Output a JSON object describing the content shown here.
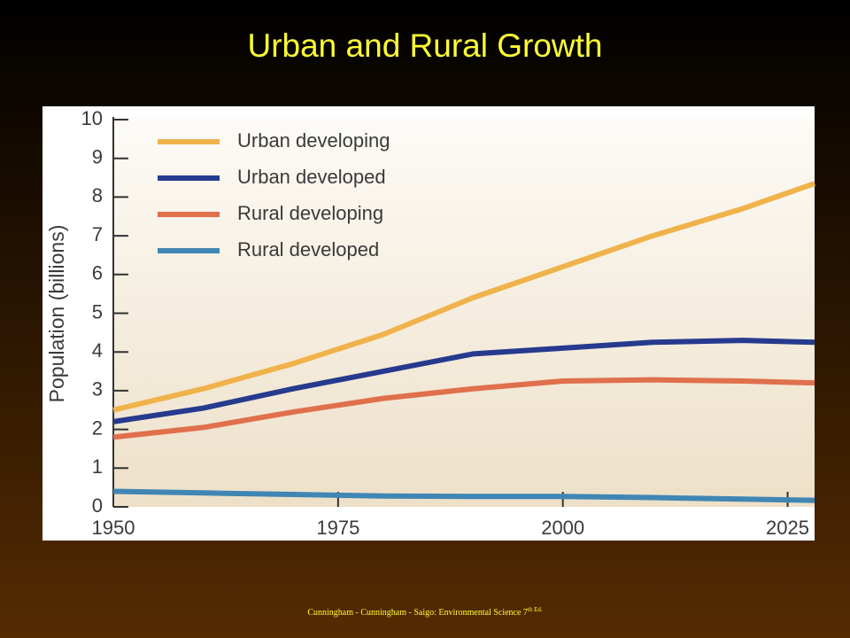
{
  "chart_data": {
    "type": "line",
    "title": "Urban and Rural Growth",
    "y_label": "Population (billions)",
    "x": [
      1950,
      1960,
      1970,
      1980,
      1990,
      2000,
      2010,
      2020,
      2028
    ],
    "series": [
      {
        "name": "Urban developing",
        "color": "#f0b24a",
        "values": [
          2.5,
          3.05,
          3.7,
          4.45,
          5.4,
          6.2,
          7.0,
          7.7,
          8.35
        ]
      },
      {
        "name": "Urban developed",
        "color": "#263a8e",
        "values": [
          2.2,
          2.55,
          3.05,
          3.5,
          3.95,
          4.1,
          4.25,
          4.3,
          4.25
        ]
      },
      {
        "name": "Rural developing",
        "color": "#e0704c",
        "values": [
          1.8,
          2.05,
          2.45,
          2.8,
          3.05,
          3.25,
          3.28,
          3.25,
          3.2
        ]
      },
      {
        "name": "Rural developed",
        "color": "#3f86b4",
        "values": [
          0.4,
          0.36,
          0.32,
          0.28,
          0.27,
          0.27,
          0.24,
          0.2,
          0.17
        ]
      }
    ],
    "xlim": [
      1950,
      2028
    ],
    "xticks": [
      1950,
      1975,
      2000,
      2025
    ],
    "ylim": [
      0,
      10
    ],
    "yticks": [
      0,
      1,
      2,
      3,
      4,
      5,
      6,
      7,
      8,
      9,
      10
    ],
    "legend": "upper left"
  },
  "footer": {
    "text": "Cunningham - Cunningham - Saigo: Environmental Science 7",
    "superscript": "th Ed."
  }
}
